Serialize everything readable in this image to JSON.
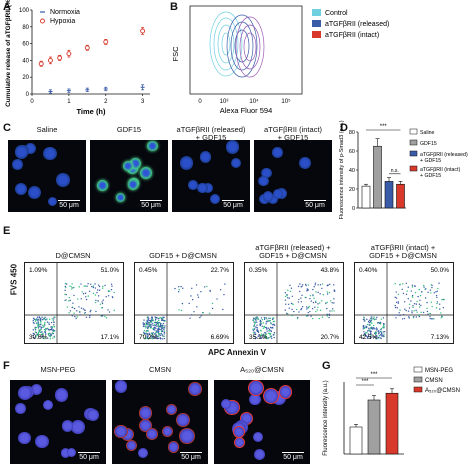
{
  "panels": {
    "A": {
      "label": "A",
      "chart_data": {
        "type": "scatter",
        "xlabel": "Time (h)",
        "ylabel": "Cumulative release of aTGFβRII (%)",
        "xlim": [
          0,
          3.2
        ],
        "ylim": [
          0,
          100
        ],
        "xticks": [
          "0",
          "1",
          "2",
          "3"
        ],
        "yticks": [
          "0",
          "20",
          "40",
          "60",
          "80",
          "100"
        ],
        "series": [
          {
            "name": "Normoxia",
            "color": "#3a5ba8",
            "x": [
              0.5,
              1,
              1.5,
              2,
              3
            ],
            "y": [
              3,
              4,
              5,
              6,
              8
            ],
            "err": [
              2,
              2,
              2,
              2,
              3
            ]
          },
          {
            "name": "Hypoxia",
            "color": "#d8392b",
            "x": [
              0.25,
              0.5,
              0.75,
              1,
              1.5,
              2,
              3
            ],
            "y": [
              36,
              40,
              43,
              48,
              55,
              62,
              75
            ],
            "err": [
              3,
              4,
              3,
              4,
              3,
              3,
              4
            ]
          }
        ]
      }
    },
    "B": {
      "label": "B",
      "xlabel": "Alexa Fluor 594",
      "ylabel": "FSC",
      "xticks": [
        "0",
        "10³",
        "10⁴",
        "10⁵"
      ],
      "legend": [
        {
          "label": "Control",
          "color": "#6fd0e0"
        },
        {
          "label": "aTGFβRII (released)",
          "color": "#3a5ba8"
        },
        {
          "label": "aTGFβRII (intact)",
          "color": "#d8392b"
        }
      ]
    },
    "C": {
      "label": "C",
      "images": [
        {
          "title": "Saline",
          "scale": "50 μm"
        },
        {
          "title": "GDF15",
          "scale": "50 μm"
        },
        {
          "title": "aTGFβRII (released)\n+ GDF15",
          "scale": "50 μm"
        },
        {
          "title": "aTGFβRII (intact)\n+ GDF15",
          "scale": "50 μm"
        }
      ]
    },
    "D": {
      "label": "D",
      "chart_data": {
        "type": "bar",
        "ylabel": "Fluorescence intensity of p-Smad3 (a.u.)",
        "ylim": [
          0,
          80
        ],
        "yticks": [
          "0",
          "20",
          "40",
          "60",
          "80"
        ],
        "categories": [
          "Saline",
          "GDF15",
          "aTGFβRII (released) + GDF15",
          "aTGFβRII (intact) + GDF15"
        ],
        "legend": [
          "Saline",
          "GDF15",
          "aTGFβRII (released)\n+ GDF15",
          "aTGFβRII (intact)\n+ GDF15"
        ],
        "colors": [
          "#ffffff",
          "#a0a0a0",
          "#3a5ba8",
          "#d8392b"
        ],
        "values": [
          23,
          65,
          28,
          25
        ],
        "err": [
          2,
          8,
          4,
          3
        ],
        "significance": [
          "***",
          "n.s."
        ]
      }
    },
    "E": {
      "label": "E",
      "xlabel": "APC Annexin V",
      "ylabel": "FVS 450",
      "plots": [
        {
          "title": "D@CMSN",
          "ul": "1.09%",
          "ur": "51.0%",
          "ll": "30.8%",
          "lr": "17.1%"
        },
        {
          "title": "GDF15 + D@CMSN",
          "ul": "0.45%",
          "ur": "22.7%",
          "ll": "70.2%",
          "lr": "6.69%"
        },
        {
          "title": "aTGFβRII (released) +\nGDF15 + D@CMSN",
          "ul": "0.35%",
          "ur": "43.8%",
          "ll": "35.1%",
          "lr": "20.7%"
        },
        {
          "title": "aTGFβRII (intact) +\nGDF15 + D@CMSN",
          "ul": "0.40%",
          "ur": "50.0%",
          "ll": "42.5%",
          "lr": "7.13%"
        }
      ]
    },
    "F": {
      "label": "F",
      "images": [
        {
          "title": "MSN-PEG",
          "scale": "50 μm"
        },
        {
          "title": "CMSN",
          "scale": "50 μm"
        },
        {
          "title": "A₅₂₀@CMSN",
          "scale": "50 μm"
        }
      ]
    },
    "G": {
      "label": "G",
      "chart_data": {
        "type": "bar",
        "ylabel": "Fluorescence intensity (a.u.)",
        "categories": [
          "MSN-PEG",
          "CMSN",
          "A₅₂₀@CMSN"
        ],
        "legend": [
          "MSN-PEG",
          "CMSN",
          "A₅₂₀@CMSN"
        ],
        "colors": [
          "#ffffff",
          "#a0a0a0",
          "#d8392b"
        ],
        "values": [
          6,
          12,
          13.5
        ],
        "err": [
          0.6,
          1,
          1
        ],
        "ylim": [
          0,
          16
        ],
        "significance": [
          "***",
          "***"
        ]
      }
    }
  },
  "colors": {
    "blue": "#3a5ba8",
    "red": "#d8392b",
    "gray": "#a0a0a0"
  }
}
